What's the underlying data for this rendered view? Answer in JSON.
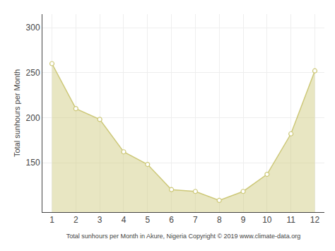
{
  "chart_data": {
    "type": "area",
    "x": [
      1,
      2,
      3,
      4,
      5,
      6,
      7,
      8,
      9,
      10,
      11,
      12
    ],
    "values": [
      260,
      210,
      198,
      162,
      148,
      120,
      118,
      108,
      118,
      137,
      182,
      252
    ],
    "xlabel": "Total sunhours per Month in Akure, Nigeria Copyright © 2019 www.climate-data.org",
    "ylabel": "Total sunhours per Month",
    "xlim": [
      0.6,
      12.4
    ],
    "xticks": [
      1,
      2,
      3,
      4,
      5,
      6,
      7,
      8,
      9,
      10,
      11,
      12
    ],
    "ylim": [
      95,
      315
    ],
    "yticks": [
      150,
      200,
      250,
      300
    ],
    "grid": true,
    "color": "#cdc878",
    "marker": "circle"
  }
}
